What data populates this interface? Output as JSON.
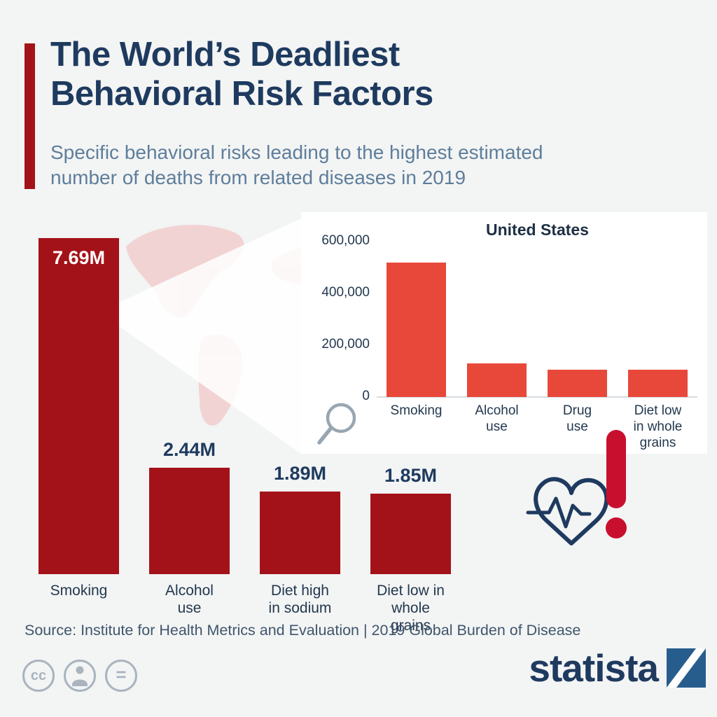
{
  "header": {
    "title_line1": "The World’s Deadliest",
    "title_line2": "Behavioral Risk Factors",
    "subtitle_line1": "Specific behavioral risks leading to the highest estimated",
    "subtitle_line2": "number of deaths from related diseases in 2019"
  },
  "chart_data": [
    {
      "type": "bar",
      "title": "",
      "categories": [
        "Smoking",
        "Alcohol use",
        "Diet high in sodium",
        "Diet low in whole grains"
      ],
      "category_labels": [
        "Smoking",
        "Alcohol\nuse",
        "Diet high\nin sodium",
        "Diet low in\nwhole grains"
      ],
      "values": [
        7.69,
        2.44,
        1.89,
        1.85
      ],
      "value_labels": [
        "7.69M",
        "2.44M",
        "1.89M",
        "1.85M"
      ],
      "unit": "million deaths",
      "ylim": [
        0,
        7.69
      ],
      "grid": false,
      "legend": false,
      "bar_color": "#a41219"
    },
    {
      "type": "bar",
      "title": "United States",
      "categories": [
        "Smoking",
        "Alcohol use",
        "Drug use",
        "Diet low in whole grains"
      ],
      "category_labels": [
        "Smoking",
        "Alcohol\nuse",
        "Drug\nuse",
        "Diet low\nin whole\ngrains"
      ],
      "values": [
        520000,
        130000,
        105000,
        105000
      ],
      "unit": "deaths",
      "ylim": [
        0,
        600000
      ],
      "ytick_values": [
        0,
        200000,
        400000,
        600000
      ],
      "ytick_labels": [
        "0",
        "200,000",
        "400,000",
        "600,000"
      ],
      "grid": false,
      "legend": false,
      "bar_color": "#e8483a"
    }
  ],
  "footer": {
    "source": "Source: Institute for Health Metrics and Evaluation | 2019 Global Burden of Disease",
    "brand": "statista",
    "cc_label": "cc",
    "equals_label": "="
  },
  "colors": {
    "accent_red": "#a41219",
    "inset_red": "#e8483a",
    "navy": "#1e3a5f",
    "subtitle_blue": "#5e7e9b",
    "background": "#f3f4f4",
    "map_pink": "#f2bcbc",
    "exclamation_red": "#c8102e",
    "logo_blue": "#275d8d"
  }
}
